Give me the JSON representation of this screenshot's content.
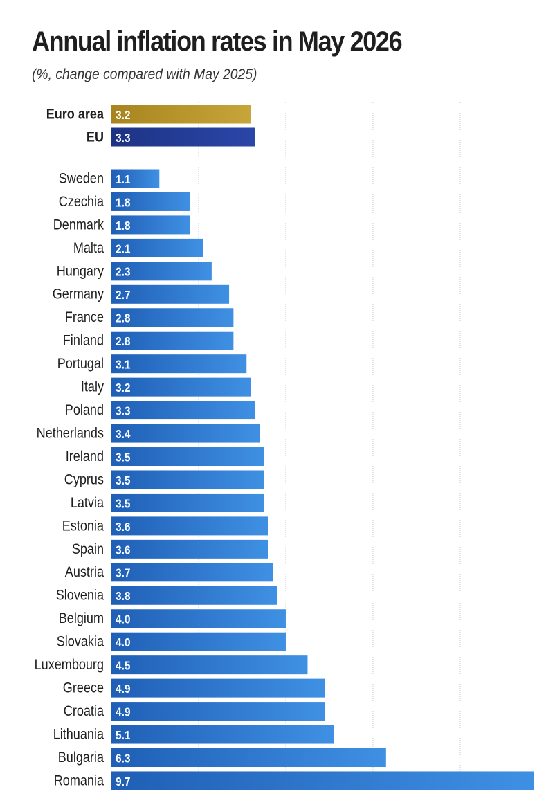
{
  "title": "Annual inflation rates in May 2026",
  "subtitle": "(%, change compared with May 2025)",
  "colors": {
    "euro_area": "#b8952a",
    "eu": "#233c98",
    "country": "#2d7ad4",
    "gridline": "#c8c8c8"
  },
  "chart_data": {
    "type": "bar",
    "orientation": "horizontal",
    "title": "Annual inflation rates in May 2026",
    "subtitle": "(%, change compared with May 2025)",
    "xlabel": "",
    "ylabel": "",
    "xlim": [
      0,
      9.7
    ],
    "grid": true,
    "legend": "none",
    "aggregates": [
      {
        "label": "Euro area",
        "value": 3.2,
        "value_label": "3.2",
        "color": "#b8952a"
      },
      {
        "label": "EU",
        "value": 3.3,
        "value_label": "3.3",
        "color": "#233c98"
      }
    ],
    "categories": [
      "Sweden",
      "Czechia",
      "Denmark",
      "Malta",
      "Hungary",
      "Germany",
      "France",
      "Finland",
      "Portugal",
      "Italy",
      "Poland",
      "Netherlands",
      "Ireland",
      "Cyprus",
      "Latvia",
      "Estonia",
      "Spain",
      "Austria",
      "Slovenia",
      "Belgium",
      "Slovakia",
      "Luxembourg",
      "Greece",
      "Croatia",
      "Lithuania",
      "Bulgaria",
      "Romania"
    ],
    "values": [
      1.1,
      1.8,
      1.8,
      2.1,
      2.3,
      2.7,
      2.8,
      2.8,
      3.1,
      3.2,
      3.3,
      3.4,
      3.5,
      3.5,
      3.5,
      3.6,
      3.6,
      3.7,
      3.8,
      4.0,
      4.0,
      4.5,
      4.9,
      4.9,
      5.1,
      6.3,
      9.7
    ],
    "value_labels": [
      "1.1",
      "1.8",
      "1.8",
      "2.1",
      "2.3",
      "2.7",
      "2.8",
      "2.8",
      "3.1",
      "3.2",
      "3.3",
      "3.4",
      "3.5",
      "3.5",
      "3.5",
      "3.6",
      "3.6",
      "3.7",
      "3.8",
      "4.0",
      "4.0",
      "4.5",
      "4.9",
      "4.9",
      "5.1",
      "6.3",
      "9.7"
    ]
  }
}
